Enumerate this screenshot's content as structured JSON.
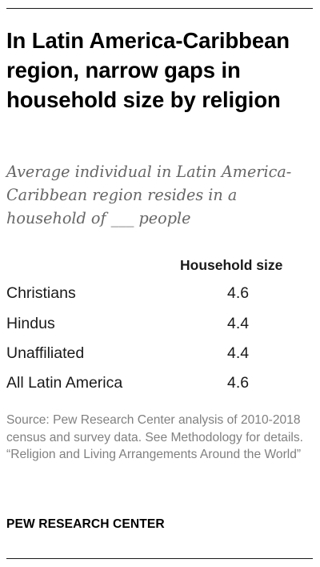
{
  "title": "In Latin America-Caribbean region, narrow gaps in household size by religion",
  "subtitle": "Average individual in Latin America-Caribbean region resides in a household of ___ people",
  "chart_data": {
    "type": "table",
    "title": "In Latin America-Caribbean region, narrow gaps in household size by religion",
    "columns": [
      "",
      "Household size"
    ],
    "rows": [
      {
        "label": "Christians",
        "value": "4.6"
      },
      {
        "label": "Hindus",
        "value": "4.4"
      },
      {
        "label": "Unaffiliated",
        "value": "4.4"
      },
      {
        "label": "All Latin America",
        "value": "4.6"
      }
    ]
  },
  "source": {
    "line1": "Source: Pew Research Center analysis of 2010-2018 census and survey data. See Methodology for details.",
    "line2": "“Religion and Living Arrangements Around the World”"
  },
  "org": "PEW RESEARCH CENTER"
}
